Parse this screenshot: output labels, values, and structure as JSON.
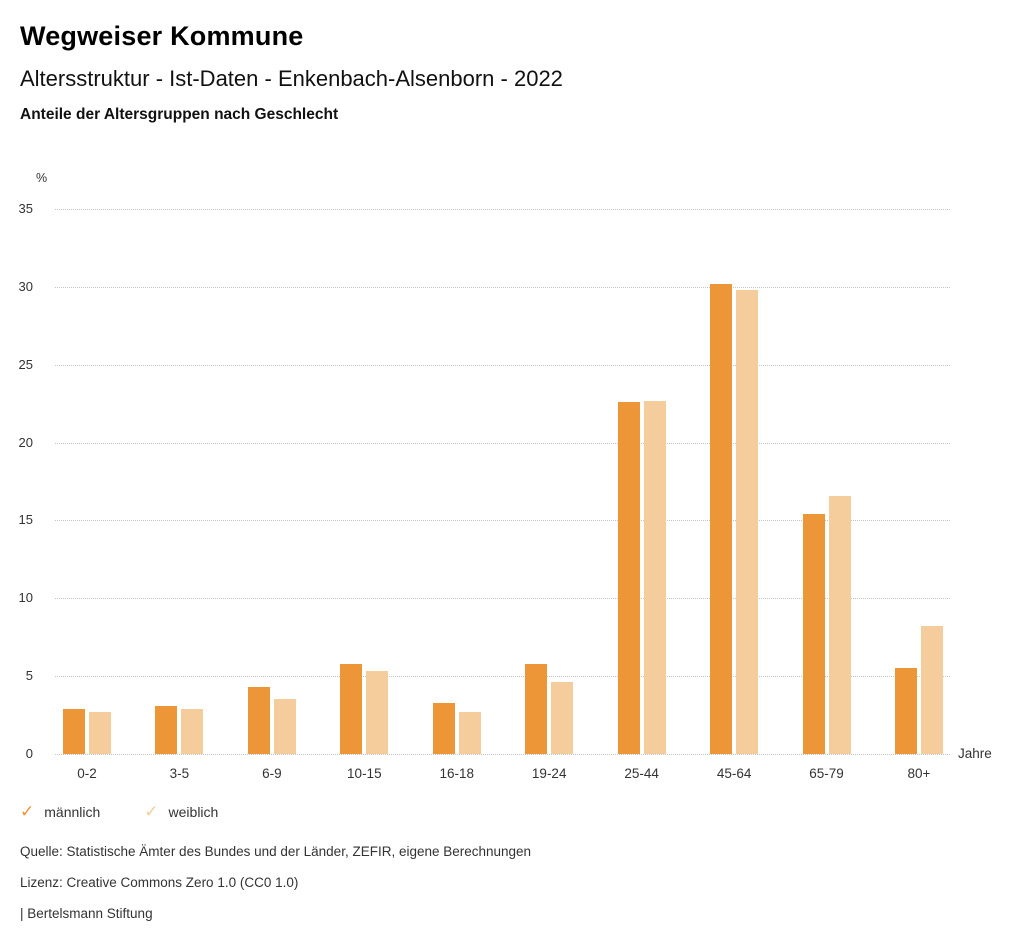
{
  "header": {
    "title": "Wegweiser Kommune",
    "subtitle": "Altersstruktur - Ist-Daten - Enkenbach-Alsenborn - 2022",
    "chart_heading": "Anteile der Altersgruppen nach Geschlecht"
  },
  "chart_data": {
    "type": "bar",
    "title": "Anteile der Altersgruppen nach Geschlecht",
    "categories": [
      "0-2",
      "3-5",
      "6-9",
      "10-15",
      "16-18",
      "19-24",
      "25-44",
      "45-64",
      "65-79",
      "80+"
    ],
    "series": [
      {
        "name": "männlich",
        "color": "#ec9637",
        "values": [
          2.9,
          3.1,
          4.3,
          5.8,
          3.3,
          5.8,
          22.6,
          30.2,
          15.4,
          5.5
        ]
      },
      {
        "name": "weiblich",
        "color": "#f5cc9b",
        "values": [
          2.7,
          2.9,
          3.5,
          5.3,
          2.7,
          4.6,
          22.7,
          29.8,
          16.6,
          8.2
        ]
      }
    ],
    "unit_label": "%",
    "x_unit_label": "Jahre",
    "xlabel": "Jahre",
    "ylabel": "%",
    "y_ticks": [
      0,
      5,
      10,
      15,
      20,
      25,
      30,
      35
    ],
    "ylim": [
      0,
      35
    ],
    "grid": "horizontal-dotted",
    "gridline_color": "#c4c4c4",
    "legend_position": "bottom-left",
    "legend_marker": "check"
  },
  "legend": {
    "items": [
      {
        "label": "männlich",
        "color": "#ec9637"
      },
      {
        "label": "weiblich",
        "color": "#f5cc9b"
      }
    ]
  },
  "footer": {
    "source": "Quelle: Statistische Ämter des Bundes und der Länder, ZEFIR, eigene Berechnungen",
    "license": "Lizenz: Creative Commons Zero 1.0 (CC0 1.0)",
    "attribution": "| Bertelsmann Stiftung"
  }
}
